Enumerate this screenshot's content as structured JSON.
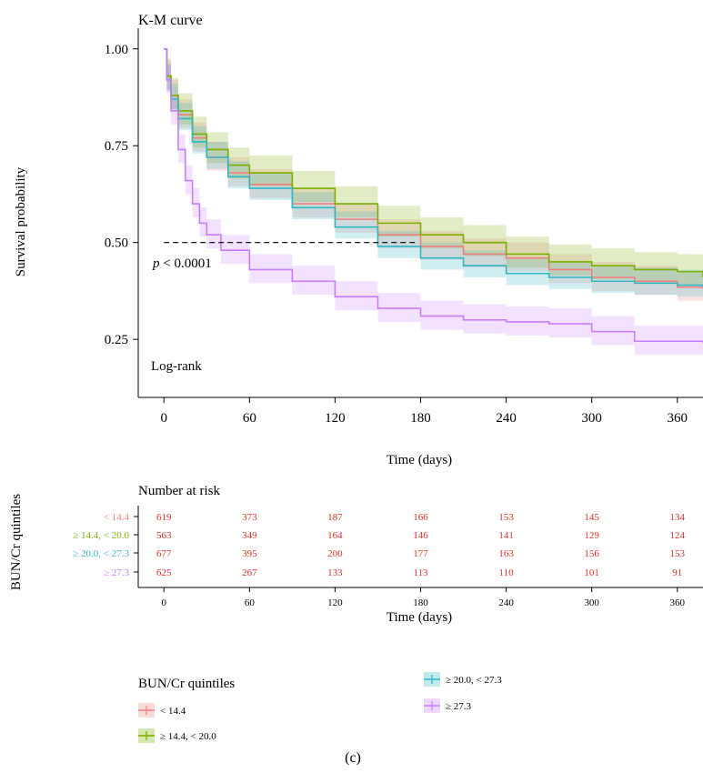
{
  "chart_data": {
    "type": "line",
    "title": "K-M curve",
    "xlabel": "Time (days)",
    "ylabel": "Survival probability",
    "xlim": [
      -18,
      378
    ],
    "ylim": [
      0.1,
      1.03
    ],
    "xticks": [
      0,
      60,
      120,
      180,
      240,
      300,
      360
    ],
    "yticks": [
      0.25,
      0.5,
      0.75,
      1.0
    ],
    "ytick_labels": [
      "0.25",
      "0.50",
      "0.75",
      "1.00"
    ],
    "grid": false,
    "median_line": {
      "y": 0.5,
      "x_end": 178
    },
    "annotations": {
      "p_italic": "p",
      "p_rest": " < 0.0001",
      "test": "Log-rank"
    },
    "series": [
      {
        "name": "< 14.4",
        "color": "#f08080",
        "points": [
          [
            0,
            1.0
          ],
          [
            2,
            0.93
          ],
          [
            5,
            0.88
          ],
          [
            10,
            0.83
          ],
          [
            20,
            0.77
          ],
          [
            30,
            0.72
          ],
          [
            45,
            0.68
          ],
          [
            60,
            0.65
          ],
          [
            90,
            0.6
          ],
          [
            120,
            0.56
          ],
          [
            150,
            0.52
          ],
          [
            180,
            0.49
          ],
          [
            210,
            0.47
          ],
          [
            240,
            0.46
          ],
          [
            270,
            0.43
          ],
          [
            300,
            0.41
          ],
          [
            330,
            0.4
          ],
          [
            360,
            0.385
          ],
          [
            378,
            0.38
          ]
        ],
        "ci": [
          0.035,
          0.04
        ]
      },
      {
        "name": "≥ 14.4, < 20.0",
        "color": "#7cae00",
        "points": [
          [
            0,
            1.0
          ],
          [
            2,
            0.93
          ],
          [
            5,
            0.88
          ],
          [
            10,
            0.84
          ],
          [
            20,
            0.78
          ],
          [
            30,
            0.74
          ],
          [
            45,
            0.7
          ],
          [
            60,
            0.68
          ],
          [
            90,
            0.64
          ],
          [
            120,
            0.6
          ],
          [
            150,
            0.55
          ],
          [
            180,
            0.52
          ],
          [
            210,
            0.5
          ],
          [
            240,
            0.47
          ],
          [
            270,
            0.45
          ],
          [
            300,
            0.44
          ],
          [
            330,
            0.43
          ],
          [
            360,
            0.425
          ],
          [
            378,
            0.41
          ]
        ],
        "ci": [
          0.035,
          0.045
        ]
      },
      {
        "name": "≥ 20.0, < 27.3",
        "color": "#2eb8c4",
        "points": [
          [
            0,
            1.0
          ],
          [
            2,
            0.92
          ],
          [
            5,
            0.87
          ],
          [
            10,
            0.82
          ],
          [
            20,
            0.76
          ],
          [
            30,
            0.72
          ],
          [
            45,
            0.67
          ],
          [
            60,
            0.64
          ],
          [
            90,
            0.59
          ],
          [
            120,
            0.54
          ],
          [
            150,
            0.49
          ],
          [
            180,
            0.46
          ],
          [
            210,
            0.44
          ],
          [
            240,
            0.42
          ],
          [
            270,
            0.41
          ],
          [
            300,
            0.4
          ],
          [
            330,
            0.395
          ],
          [
            360,
            0.39
          ],
          [
            378,
            0.385
          ]
        ],
        "ci": [
          0.03,
          0.04
        ]
      },
      {
        "name": "≥ 27.3",
        "color": "#c77cff",
        "points": [
          [
            0,
            1.0
          ],
          [
            2,
            0.92
          ],
          [
            5,
            0.84
          ],
          [
            10,
            0.74
          ],
          [
            15,
            0.66
          ],
          [
            20,
            0.6
          ],
          [
            25,
            0.55
          ],
          [
            30,
            0.52
          ],
          [
            40,
            0.48
          ],
          [
            60,
            0.43
          ],
          [
            90,
            0.4
          ],
          [
            120,
            0.36
          ],
          [
            150,
            0.33
          ],
          [
            180,
            0.31
          ],
          [
            210,
            0.3
          ],
          [
            240,
            0.295
          ],
          [
            270,
            0.29
          ],
          [
            300,
            0.27
          ],
          [
            330,
            0.245
          ],
          [
            360,
            0.245
          ],
          [
            378,
            0.24
          ]
        ],
        "ci": [
          0.035,
          0.04
        ]
      }
    ]
  },
  "risk_table": {
    "title": "Number at risk",
    "xlabel": "Time (days)",
    "group_axis_label": "BUN/Cr quintiles",
    "times": [
      0,
      60,
      120,
      180,
      240,
      300,
      360
    ],
    "time_labels": [
      "0",
      "60",
      "120",
      "180",
      "240",
      "300",
      "360"
    ],
    "value_color": "#e0302a",
    "rows": [
      {
        "label": "< 14.4",
        "color": "#f08080",
        "values": [
          "619",
          "373",
          "187",
          "166",
          "153",
          "145",
          "134"
        ]
      },
      {
        "label": "≥ 14.4, < 20.0",
        "color": "#7cae00",
        "values": [
          "563",
          "349",
          "164",
          "146",
          "141",
          "129",
          "124"
        ]
      },
      {
        "label": "≥ 20.0, < 27.3",
        "color": "#2eb8c4",
        "values": [
          "677",
          "395",
          "200",
          "177",
          "163",
          "156",
          "153"
        ]
      },
      {
        "label": "≥ 27.3",
        "color": "#c77cff",
        "values": [
          "625",
          "267",
          "133",
          "113",
          "110",
          "101",
          "91"
        ]
      }
    ]
  },
  "legend": {
    "title": "BUN/Cr quintiles",
    "items": [
      {
        "label": "< 14.4",
        "color": "#f08080"
      },
      {
        "label": "≥ 14.4, < 20.0",
        "color": "#7cae00"
      },
      {
        "label": "≥ 20.0, < 27.3",
        "color": "#2eb8c4"
      },
      {
        "label": "≥ 27.3",
        "color": "#c77cff"
      }
    ]
  },
  "caption": "(c)"
}
